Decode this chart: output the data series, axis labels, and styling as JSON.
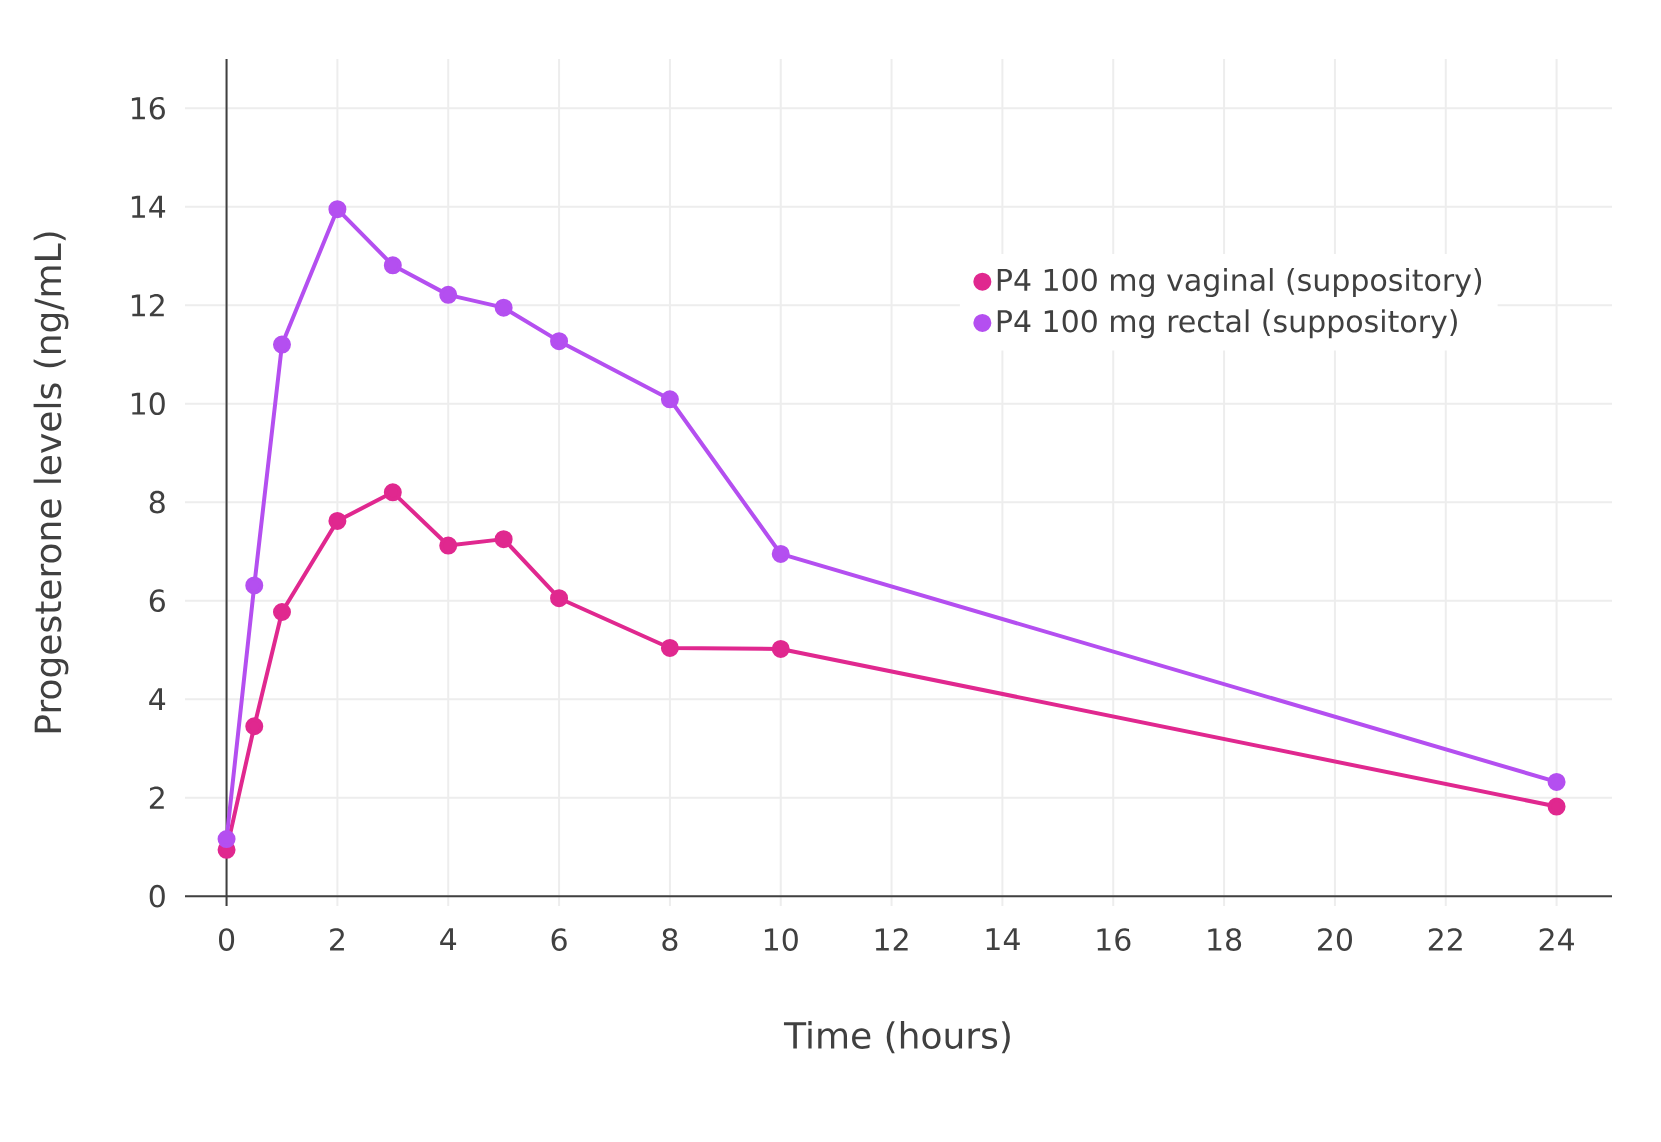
{
  "chart_data": {
    "type": "line",
    "xlabel": "Time (hours)",
    "ylabel": "Progesterone levels (ng/mL)",
    "x": [
      0,
      0.5,
      1,
      2,
      3,
      4,
      5,
      6,
      8,
      10,
      24
    ],
    "series": [
      {
        "name": "P4 100 mg vaginal (suppository)",
        "color": "#e0288f",
        "values": [
          0.94,
          3.45,
          5.77,
          7.62,
          8.2,
          7.12,
          7.25,
          6.05,
          5.04,
          5.02,
          1.82
        ]
      },
      {
        "name": "P4 100 mg rectal (suppository)",
        "color": "#b44ff0",
        "values": [
          1.16,
          6.31,
          11.2,
          13.95,
          12.81,
          12.21,
          11.95,
          11.27,
          10.09,
          6.95,
          2.32
        ]
      }
    ],
    "xlim": [
      -0.75,
      25
    ],
    "ylim": [
      -0.2,
      17
    ],
    "xticks": [
      0,
      2,
      4,
      6,
      8,
      10,
      12,
      14,
      16,
      18,
      20,
      22,
      24
    ],
    "yticks": [
      0,
      2,
      4,
      6,
      8,
      10,
      12,
      14,
      16
    ],
    "grid": true,
    "legend": "top right",
    "marker": "circle",
    "line_style": "solid"
  }
}
